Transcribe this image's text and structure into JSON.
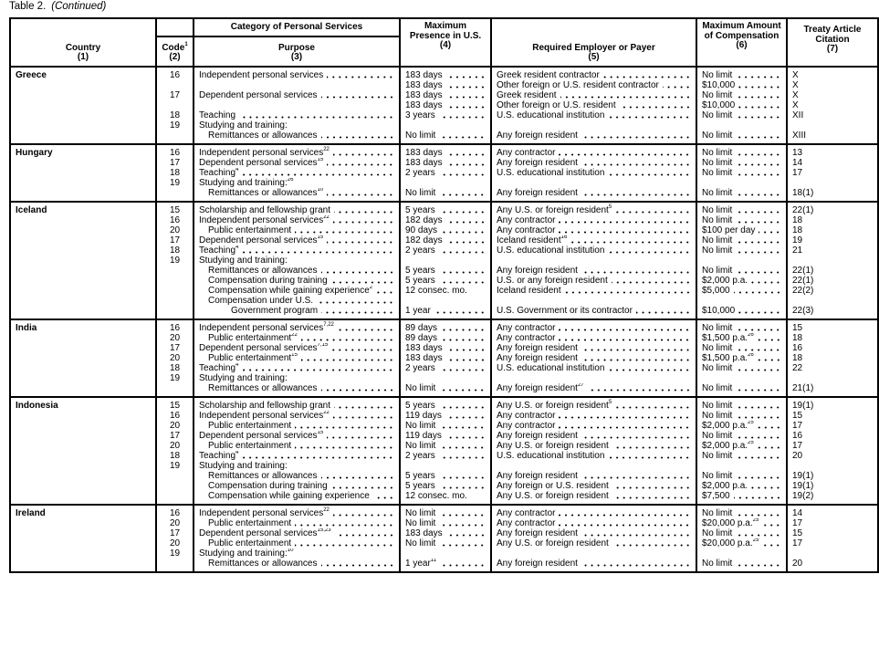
{
  "caption": {
    "label": "Table 2.",
    "note": "(Continued)"
  },
  "headers": {
    "country": "Country",
    "country_num": "(1)",
    "category": "Category of Personal Services",
    "code": "Code",
    "code_sup": "1",
    "code_num": "(2)",
    "purpose": "Purpose",
    "purpose_num": "(3)",
    "presence": "Maximum Presence in U.S.",
    "presence_num": "(4)",
    "employer": "Required Employer or Payer",
    "employer_num": "(5)",
    "compensation": "Maximum Amount of Compensation",
    "compensation_num": "(6)",
    "citation": "Treaty Article Citation",
    "citation_num": "(7)"
  },
  "groups": [
    {
      "country": "Greece",
      "rows": [
        {
          "code": "16",
          "purpose": "Independent personal services",
          "presence": "183 days",
          "employer": "Greek resident contractor",
          "comp": "No limit",
          "cite": "X"
        },
        {
          "code": "",
          "purpose": "",
          "presence": "183 days",
          "employer": "Other foreign or U.S. resident contractor",
          "comp": "$10,000",
          "cite": "X"
        },
        {
          "code": "17",
          "purpose": "Dependent personal services",
          "presence": "183 days",
          "employer": "Greek resident",
          "comp": "No limit",
          "cite": "X"
        },
        {
          "code": "",
          "purpose": "",
          "presence": "183 days",
          "employer": "Other foreign or U.S. resident",
          "comp": "$10,000",
          "cite": "X"
        },
        {
          "code": "18",
          "purpose": "Teaching",
          "presence": "3 years",
          "employer": "U.S. educational institution",
          "comp": "No limit",
          "cite": "XII"
        },
        {
          "code": "19",
          "purpose": "Studying and training:",
          "presence": "",
          "employer": "",
          "comp": "",
          "cite": ""
        },
        {
          "code": "",
          "purpose": "Remittances or allowances",
          "indent": 1,
          "presence": "No limit",
          "employer": "Any foreign resident",
          "comp": "No limit",
          "cite": "XIII"
        }
      ]
    },
    {
      "country": "Hungary",
      "rows": [
        {
          "code": "16",
          "purpose": "Independent personal services",
          "purpose_sup": "22",
          "presence": "183 days",
          "employer": "Any contractor",
          "comp": "No limit",
          "cite": "13"
        },
        {
          "code": "17",
          "purpose": "Dependent personal services",
          "purpose_sup": "15",
          "presence": "183 days",
          "employer": "Any foreign resident",
          "comp": "No limit",
          "cite": "14"
        },
        {
          "code": "18",
          "purpose": "Teaching",
          "purpose_sup": "4",
          "presence": "2 years",
          "employer": "U.S. educational institution",
          "comp": "No limit",
          "cite": "17"
        },
        {
          "code": "19",
          "purpose": "Studying and training:",
          "purpose_sup": "26",
          "presence": "",
          "employer": "",
          "comp": "",
          "cite": ""
        },
        {
          "code": "",
          "purpose": "Remittances or allowances",
          "purpose_sup": "10",
          "indent": 1,
          "presence": "No limit",
          "employer": "Any foreign resident",
          "comp": "No limit",
          "cite": "18(1)"
        }
      ]
    },
    {
      "country": "Iceland",
      "rows": [
        {
          "code": "15",
          "purpose": "Scholarship and fellowship grant",
          "presence": "5 years",
          "employer": "Any U.S. or foreign resident",
          "employer_sup": "5",
          "comp": "No limit",
          "cite": "22(1)"
        },
        {
          "code": "16",
          "purpose": "Independent personal services",
          "purpose_sup": "22",
          "presence": "182 days",
          "employer": "Any contractor",
          "comp": "No limit",
          "cite": "18"
        },
        {
          "code": "20",
          "purpose": "Public entertainment",
          "indent": 1,
          "presence": "90 days",
          "employer": "Any contractor",
          "comp": "$100 per day",
          "cite": "18"
        },
        {
          "code": "17",
          "purpose": "Dependent personal services",
          "purpose_sup": "15",
          "presence": "182 days",
          "employer": "Iceland resident",
          "employer_sup": "16",
          "comp": "No limit",
          "cite": "19"
        },
        {
          "code": "18",
          "purpose": "Teaching",
          "purpose_sup": "4",
          "presence": "2 years",
          "employer": "U.S. educational institution",
          "comp": "No limit",
          "cite": "21"
        },
        {
          "code": "19",
          "purpose": "Studying and training:",
          "presence": "",
          "employer": "",
          "comp": "",
          "cite": ""
        },
        {
          "code": "",
          "purpose": "Remittances or allowances",
          "indent": 1,
          "presence": "5 years",
          "employer": "Any foreign resident",
          "comp": "No limit",
          "cite": "22(1)"
        },
        {
          "code": "",
          "purpose": "Compensation during training",
          "indent": 1,
          "presence": "5 years",
          "employer": "U.S. or any foreign resident",
          "comp": "$2,000 p.a.",
          "cite": "22(1)"
        },
        {
          "code": "",
          "purpose": "Compensation while gaining experience",
          "purpose_sup": "2",
          "indent": 1,
          "presence": "12 consec. mo.",
          "employer": "Iceland resident",
          "comp": "$5,000",
          "cite": "22(2)"
        },
        {
          "code": "",
          "purpose": "Compensation under U.S.",
          "indent": 1,
          "presence": "",
          "employer": "",
          "comp": "",
          "cite": ""
        },
        {
          "code": "",
          "purpose": "Government program",
          "indent": 2,
          "presence": "1 year",
          "employer": "U.S. Government or its contractor",
          "comp": "$10,000",
          "cite": "22(3)"
        }
      ]
    },
    {
      "country": "India",
      "rows": [
        {
          "code": "16",
          "purpose": "Independent personal services",
          "purpose_sup": "7,22",
          "presence": "89 days",
          "employer": "Any contractor",
          "comp": "No limit",
          "cite": "15"
        },
        {
          "code": "20",
          "purpose": "Public entertainment",
          "purpose_sup": "22",
          "indent": 1,
          "presence": "89 days",
          "employer": "Any contractor",
          "comp": "$1,500 p.a.",
          "comp_sup": "26",
          "cite": "18"
        },
        {
          "code": "17",
          "purpose": "Dependent personal services",
          "purpose_sup": "7,15",
          "presence": "183 days",
          "employer": "Any foreign resident",
          "comp": "No limit",
          "cite": "16"
        },
        {
          "code": "20",
          "purpose": "Public entertainment",
          "purpose_sup": "15",
          "indent": 1,
          "presence": "183 days",
          "employer": "Any foreign resident",
          "comp": "$1,500 p.a.",
          "comp_sup": "26",
          "cite": "18"
        },
        {
          "code": "18",
          "purpose": "Teaching",
          "purpose_sup": "4",
          "presence": "2 years",
          "employer": "U.S. educational institution",
          "comp": "No limit",
          "cite": "22"
        },
        {
          "code": "19",
          "purpose": "Studying and training:",
          "presence": "",
          "employer": "",
          "comp": "",
          "cite": ""
        },
        {
          "code": "",
          "purpose": "Remittances or allowances",
          "indent": 1,
          "presence": "No limit",
          "employer": "Any foreign resident",
          "employer_sup": "27",
          "comp": "No limit",
          "cite": "21(1)"
        }
      ]
    },
    {
      "country": "Indonesia",
      "rows": [
        {
          "code": "15",
          "purpose": "Scholarship and fellowship grant",
          "presence": "5 years",
          "employer": "Any U.S. or foreign resident",
          "employer_sup": "5",
          "comp": "No limit",
          "cite": "19(1)"
        },
        {
          "code": "16",
          "purpose": "Independent personal services",
          "purpose_sup": "22",
          "presence": "119 days",
          "employer": "Any contractor",
          "comp": "No limit",
          "cite": "15"
        },
        {
          "code": "20",
          "purpose": "Public entertainment",
          "indent": 1,
          "presence": "No limit",
          "employer": "Any contractor",
          "comp": "$2,000 p.a.",
          "comp_sup": "25",
          "cite": "17"
        },
        {
          "code": "17",
          "purpose": "Dependent personal services",
          "purpose_sup": "15",
          "presence": "119 days",
          "employer": "Any foreign resident",
          "comp": "No limit",
          "cite": "16"
        },
        {
          "code": "20",
          "purpose": "Public entertainment",
          "indent": 1,
          "presence": "No limit",
          "employer": "Any U.S. or foreign resident",
          "comp": "$2,000 p.a.",
          "comp_sup": "25",
          "cite": "17"
        },
        {
          "code": "18",
          "purpose": "Teaching",
          "purpose_sup": "4",
          "presence": "2 years",
          "employer": "U.S. educational institution",
          "comp": "No limit",
          "cite": "20"
        },
        {
          "code": "19",
          "purpose": "Studying and training:",
          "presence": "",
          "employer": "",
          "comp": "",
          "cite": ""
        },
        {
          "code": "",
          "purpose": "Remittances or allowances",
          "indent": 1,
          "presence": "5 years",
          "employer": "Any foreign resident",
          "comp": "No limit",
          "cite": "19(1)"
        },
        {
          "code": "",
          "purpose": "Compensation during training",
          "indent": 1,
          "presence": "5 years",
          "employer": "Any foreign or U.S. resident",
          "comp": "$2,000 p.a.",
          "cite": "19(1)"
        },
        {
          "code": "",
          "purpose": "Compensation while gaining experience",
          "indent": 1,
          "presence": "12 consec. mo.",
          "employer": "Any U.S. or foreign resident",
          "comp": "$7,500",
          "cite": "19(2)"
        }
      ]
    },
    {
      "country": "Ireland",
      "rows": [
        {
          "code": "16",
          "purpose": "Independent personal services",
          "purpose_sup": "22",
          "presence": "No limit",
          "employer": "Any contractor",
          "comp": "No limit",
          "cite": "14"
        },
        {
          "code": "20",
          "purpose": "Public entertainment",
          "indent": 1,
          "presence": "No limit",
          "employer": "Any contractor",
          "comp": "$20,000 p.a.",
          "comp_sup": "25",
          "cite": "17"
        },
        {
          "code": "17",
          "purpose": "Dependent personal services",
          "purpose_sup": "15,23",
          "presence": "183 days",
          "employer": "Any foreign resident",
          "comp": "No limit",
          "cite": "15"
        },
        {
          "code": "20",
          "purpose": "Public entertainment",
          "indent": 1,
          "presence": "No limit",
          "employer": "Any U.S. or foreign resident",
          "comp": "$20,000 p.a.",
          "comp_sup": "25",
          "cite": "17"
        },
        {
          "code": "19",
          "purpose": "Studying and training:",
          "purpose_sup": "10",
          "presence": "",
          "employer": "",
          "comp": "",
          "cite": ""
        },
        {
          "code": "",
          "purpose": "Remittances or allowances",
          "indent": 1,
          "presence": "1 year",
          "presence_sup": "11",
          "employer": "Any foreign resident",
          "comp": "No limit",
          "cite": "20"
        }
      ]
    }
  ]
}
